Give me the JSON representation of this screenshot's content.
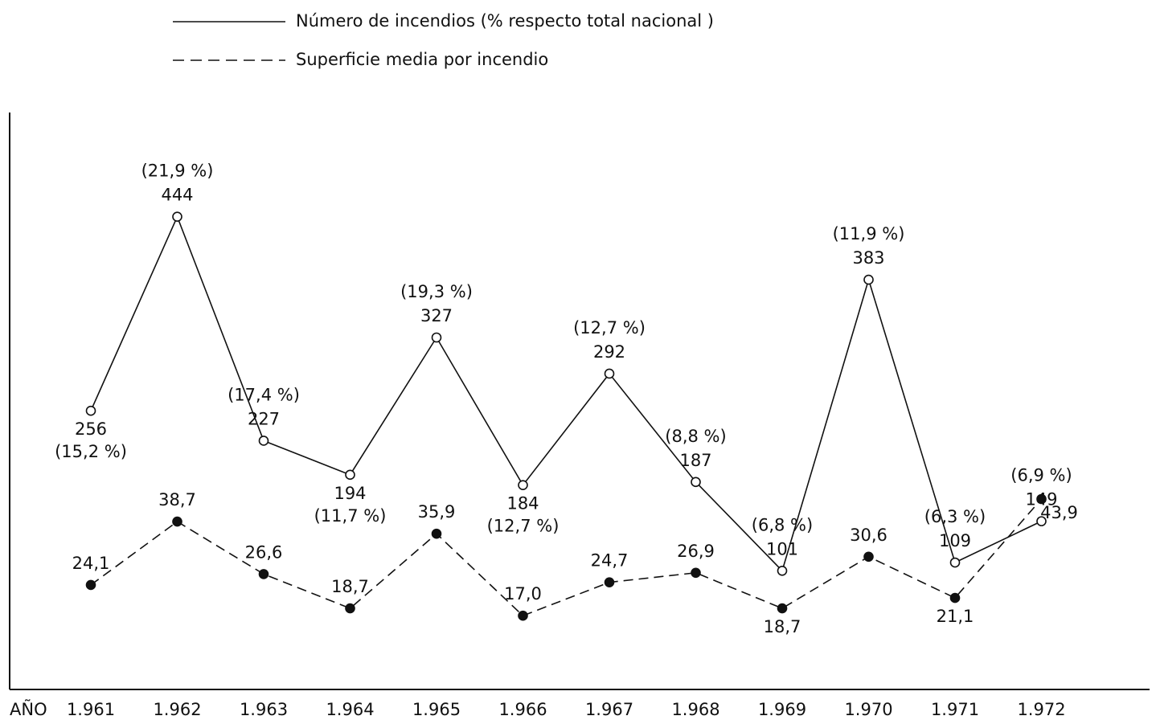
{
  "chart_data": {
    "type": "line",
    "x_label": "AÑO",
    "categories": [
      "1.961",
      "1.962",
      "1.963",
      "1.964",
      "1.965",
      "1.966",
      "1.967",
      "1.968",
      "1.969",
      "1.970",
      "1.971",
      "1.972"
    ],
    "series": [
      {
        "name": "Número de incendios (% respecto total nacional )",
        "color": "#111111",
        "line_style": "solid",
        "marker": "open",
        "values": [
          256,
          444,
          227,
          194,
          327,
          184,
          292,
          187,
          101,
          383,
          109,
          149
        ],
        "percent_labels": [
          "(15,2 %)",
          "(21,9 %)",
          "(17,4 %)",
          "(11,7 %)",
          "(19,3 %)",
          "(12,7 %)",
          "(12,7 %)",
          "(8,8 %)",
          "(6,8 %)",
          "(11,9 %)",
          "(6,3 %)",
          "(6,9 %)"
        ]
      },
      {
        "name": "Superficie media por incendio",
        "color": "#111111",
        "line_style": "dashed",
        "marker": "filled",
        "axis": "y2",
        "values": [
          24.1,
          38.7,
          26.6,
          18.7,
          35.9,
          17.0,
          24.7,
          26.9,
          18.7,
          30.6,
          21.1,
          43.9
        ],
        "value_labels": [
          "24,1",
          "38,7",
          "26,6",
          "18,7",
          "35,9",
          "17,0",
          "24,7",
          "26,9",
          "18,7",
          "30,6",
          "21,1",
          "43,9"
        ]
      }
    ],
    "ylim": [
      -14,
      545
    ],
    "y2lim": [
      0,
      133
    ]
  }
}
